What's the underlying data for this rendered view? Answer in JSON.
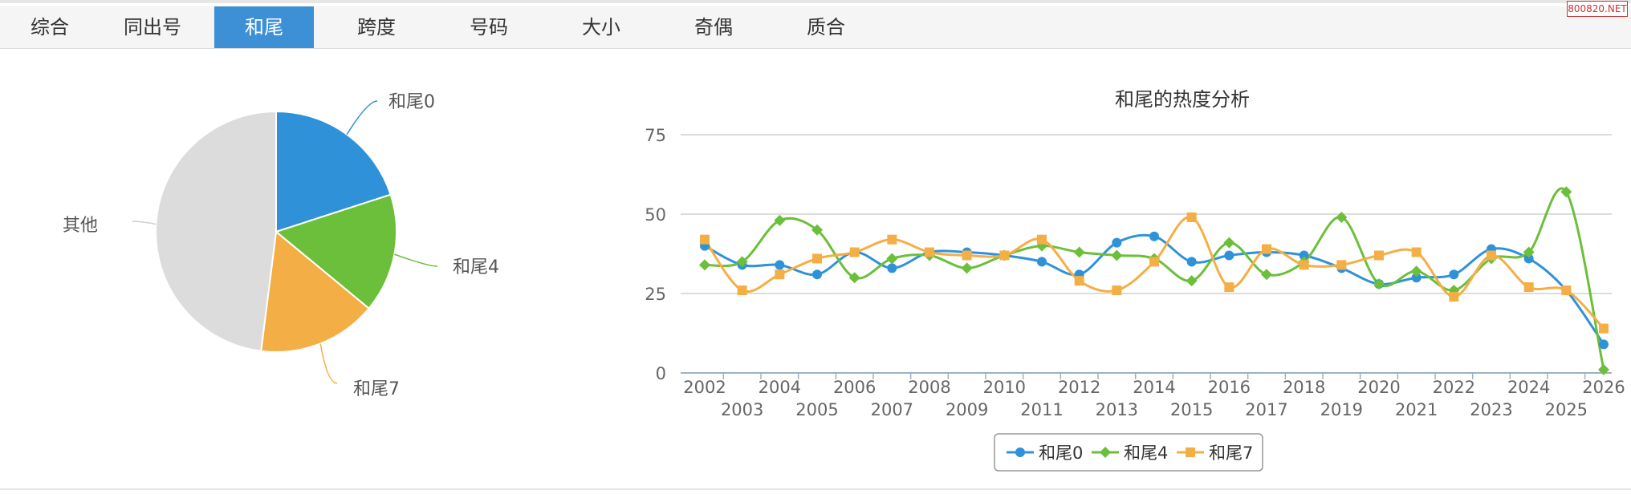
{
  "tabs": [
    {
      "label": "综合",
      "active": false
    },
    {
      "label": "同出号",
      "active": false
    },
    {
      "label": "和尾",
      "active": true
    },
    {
      "label": "跨度",
      "active": false
    },
    {
      "label": "号码",
      "active": false
    },
    {
      "label": "大小",
      "active": false
    },
    {
      "label": "奇偶",
      "active": false
    },
    {
      "label": "质合",
      "active": false
    }
  ],
  "watermark": "800820.NET",
  "chart_data": [
    {
      "type": "pie",
      "slices": [
        {
          "label": "和尾0",
          "value": 20,
          "color": "#2f92d9"
        },
        {
          "label": "和尾4",
          "value": 16,
          "color": "#6bbf3b"
        },
        {
          "label": "和尾7",
          "value": 16,
          "color": "#f4ae46"
        },
        {
          "label": "其他",
          "value": 48,
          "color": "#dcdcdc"
        }
      ]
    },
    {
      "type": "line",
      "title": "和尾的热度分析",
      "x": [
        "2002",
        "2003",
        "2004",
        "2005",
        "2006",
        "2007",
        "2008",
        "2009",
        "2010",
        "2011",
        "2012",
        "2013",
        "2014",
        "2015",
        "2016",
        "2017",
        "2018",
        "2019",
        "2020",
        "2021",
        "2022",
        "2023",
        "2024",
        "2025",
        "2026"
      ],
      "ylim": [
        0,
        75
      ],
      "yticks": [
        "0",
        "25",
        "50",
        "75"
      ],
      "grid": true,
      "legend_position": "bottom-center",
      "series": [
        {
          "name": "和尾0",
          "color": "#2f92d9",
          "marker": "circle",
          "values": [
            40,
            34,
            34,
            31,
            38,
            33,
            38,
            38,
            37,
            35,
            31,
            41,
            43,
            35,
            37,
            38,
            37,
            33,
            28,
            30,
            31,
            39,
            36,
            26,
            9
          ]
        },
        {
          "name": "和尾4",
          "color": "#6bbf3b",
          "marker": "diamond",
          "values": [
            34,
            35,
            48,
            45,
            30,
            36,
            37,
            33,
            37,
            40,
            38,
            37,
            36,
            29,
            41,
            31,
            35,
            49,
            28,
            32,
            26,
            36,
            38,
            57,
            1
          ]
        },
        {
          "name": "和尾7",
          "color": "#f4ae46",
          "marker": "square",
          "values": [
            42,
            26,
            31,
            36,
            38,
            42,
            38,
            37,
            37,
            42,
            29,
            26,
            35,
            49,
            27,
            39,
            34,
            34,
            37,
            38,
            24,
            37,
            27,
            26,
            14
          ]
        }
      ]
    }
  ]
}
